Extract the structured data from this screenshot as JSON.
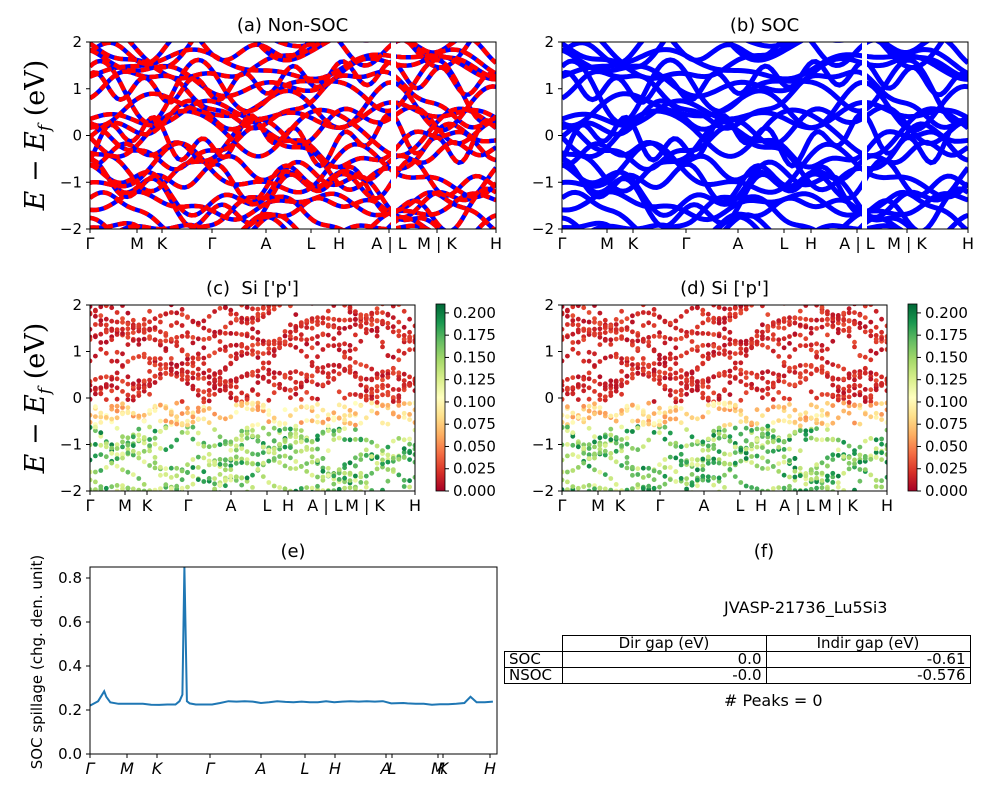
{
  "panels": {
    "a": {
      "title": "(a) Non-SOC"
    },
    "b": {
      "title": "(b) SOC"
    },
    "c": {
      "title": "(c)  Si ['p']"
    },
    "d": {
      "title": "(d) Si ['p']"
    },
    "e": {
      "title": "(e)"
    },
    "f": {
      "title": "(f)"
    }
  },
  "band_axes": {
    "ylabel": "E − E_f (eV)",
    "ylim": [
      -2,
      2
    ],
    "yticks": [
      "−2",
      "−1",
      "0",
      "1",
      "2"
    ],
    "kpath_ab": [
      "Γ",
      "M",
      "K",
      "Γ",
      "A",
      "L",
      "H",
      "A | L",
      "M | K",
      "H"
    ],
    "kpath_cd": [
      "Γ",
      "M",
      "K",
      "Γ",
      "A",
      "L",
      "H",
      "A | L",
      "M | K",
      "H"
    ]
  },
  "colorbar": {
    "colormap": "RdYlGn",
    "range": [
      0.0,
      0.21
    ],
    "ticks_c": [
      "0.000",
      "0.025",
      "0.050",
      "0.075",
      "0.100",
      "0.125",
      "0.150",
      "0.175",
      "0.200"
    ],
    "ticks_d": [
      "0.000",
      "0.025",
      "0.050",
      "0.075",
      "0.100",
      "0.125",
      "0.150",
      "0.175",
      "0.200"
    ]
  },
  "colors": {
    "nonsoc": "#ff0000",
    "soc": "#0000ff",
    "spillage": "#1f77b4"
  },
  "chart_data": [
    {
      "type": "line",
      "title": "(a) Non-SOC",
      "ylabel": "E − E_f (eV)",
      "ylim": [
        -2,
        2
      ],
      "x_labels": [
        "Γ",
        "M",
        "K",
        "Γ",
        "A",
        "L",
        "H",
        "A | L",
        "M | K",
        "H"
      ],
      "series_colors": [
        "red",
        "blue"
      ]
    },
    {
      "type": "line",
      "title": "(b) SOC",
      "ylim": [
        -2,
        2
      ],
      "x_labels": [
        "Γ",
        "M",
        "K",
        "Γ",
        "A",
        "L",
        "H",
        "A | L",
        "M | K",
        "H"
      ],
      "series_colors": [
        "blue"
      ]
    },
    {
      "type": "scatter",
      "title": "(c)  Si ['p']",
      "ylabel": "E − E_f (eV)",
      "ylim": [
        -2,
        2
      ],
      "x_labels": [
        "Γ",
        "M",
        "K",
        "Γ",
        "A",
        "L",
        "H",
        "A | L",
        "M | K",
        "H"
      ],
      "colorbar_range": [
        0.0,
        0.21
      ]
    },
    {
      "type": "scatter",
      "title": "(d) Si ['p']",
      "ylim": [
        -2,
        2
      ],
      "x_labels": [
        "Γ",
        "M",
        "K",
        "Γ",
        "A",
        "L",
        "H",
        "A | L",
        "M | K",
        "H"
      ],
      "colorbar_range": [
        0.0,
        0.21
      ]
    },
    {
      "type": "line",
      "title": "(e)",
      "ylabel": "SOC spillage (chg. den. unit)",
      "ylim": [
        0.0,
        0.85
      ],
      "yticks": [
        "0.0",
        "0.2",
        "0.4",
        "0.6",
        "0.8"
      ],
      "x_labels": [
        "Γ",
        "M",
        "K",
        "Γ",
        "A",
        "L",
        "H",
        "A",
        "L",
        "M",
        "K",
        "H"
      ],
      "x": [
        0,
        0.02,
        0.035,
        0.04,
        0.05,
        0.07,
        0.09,
        0.11,
        0.13,
        0.15,
        0.17,
        0.19,
        0.21,
        0.22,
        0.227,
        0.232,
        0.238,
        0.245,
        0.26,
        0.28,
        0.3,
        0.32,
        0.34,
        0.36,
        0.38,
        0.4,
        0.42,
        0.44,
        0.46,
        0.48,
        0.5,
        0.52,
        0.54,
        0.56,
        0.58,
        0.6,
        0.62,
        0.64,
        0.66,
        0.68,
        0.7,
        0.72,
        0.74,
        0.77,
        0.78,
        0.8,
        0.82,
        0.84,
        0.86,
        0.88,
        0.9,
        0.92,
        0.935,
        0.95,
        0.97,
        0.99
      ],
      "y": [
        0.22,
        0.24,
        0.285,
        0.26,
        0.235,
        0.228,
        0.228,
        0.228,
        0.228,
        0.224,
        0.223,
        0.225,
        0.225,
        0.24,
        0.27,
        0.85,
        0.24,
        0.23,
        0.225,
        0.225,
        0.225,
        0.232,
        0.24,
        0.238,
        0.24,
        0.238,
        0.232,
        0.235,
        0.24,
        0.237,
        0.235,
        0.238,
        0.235,
        0.235,
        0.24,
        0.235,
        0.238,
        0.24,
        0.238,
        0.24,
        0.238,
        0.24,
        0.23,
        0.232,
        0.23,
        0.228,
        0.228,
        0.224,
        0.226,
        0.226,
        0.228,
        0.232,
        0.26,
        0.235,
        0.235,
        0.238
      ]
    }
  ],
  "table": {
    "title": "JVASP-21736_Lu5Si3",
    "headers": [
      "",
      "Dir gap (eV)",
      "Indir gap (eV)"
    ],
    "rows": [
      {
        "label": "SOC",
        "dir": "0.0",
        "indir": "-0.61"
      },
      {
        "label": "NSOC",
        "dir": "-0.0",
        "indir": "-0.576"
      }
    ],
    "peaks": "# Peaks = 0"
  }
}
